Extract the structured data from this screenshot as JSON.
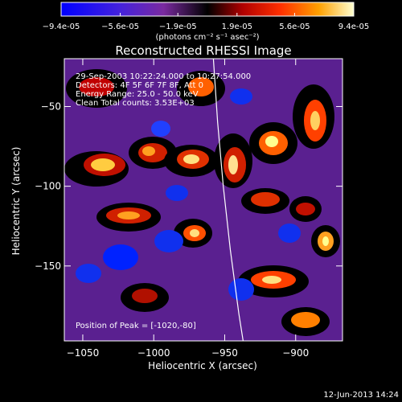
{
  "colorbar": {
    "ticks": [
      "-9.4e-05",
      "-5.6e-05",
      "-1.9e-05",
      "1.9e-05",
      "5.6e-05",
      "9.4e-05"
    ],
    "units": "(photons cm⁻² s⁻¹ asec⁻²)",
    "range": [
      -9.4e-05,
      9.4e-05
    ]
  },
  "title": "Reconstructed RHESSI Image",
  "info": {
    "line1": "29-Sep-2003 10:22:24.000 to 10:27:54.000",
    "line2": "Detectors: 4F 5F 6F 7F 8F, Att 0",
    "line3": "Energy Range: 25.0 - 50.0 keV",
    "line4": "Clean    Total counts: 3.53E+03"
  },
  "peak_label": "Position of Peak = [-1020,-80]",
  "footer_date": "12-Jun-2013 14:24",
  "chart_data": {
    "type": "heatmap",
    "xlabel": "Heliocentric X (arcsec)",
    "ylabel": "Heliocentric Y (arcsec)",
    "xlim": [
      -1063,
      -867
    ],
    "ylim": [
      -197,
      -20
    ],
    "x_ticks": [
      -1050,
      -1000,
      -950,
      -900
    ],
    "y_ticks": [
      -150,
      -100,
      -50
    ],
    "x_tick_labels": [
      "−1050",
      "−1000",
      "−950",
      "−900"
    ],
    "y_tick_labels": [
      "−150",
      "−100",
      "−50"
    ],
    "peak": [
      -1020,
      -80
    ],
    "limb_curve": [
      [
        -958,
        -20
      ],
      [
        -955,
        -60
      ],
      [
        -951,
        -100
      ],
      [
        -946,
        -140
      ],
      [
        -940,
        -180
      ],
      [
        -937,
        -197
      ]
    ],
    "grid": false
  }
}
